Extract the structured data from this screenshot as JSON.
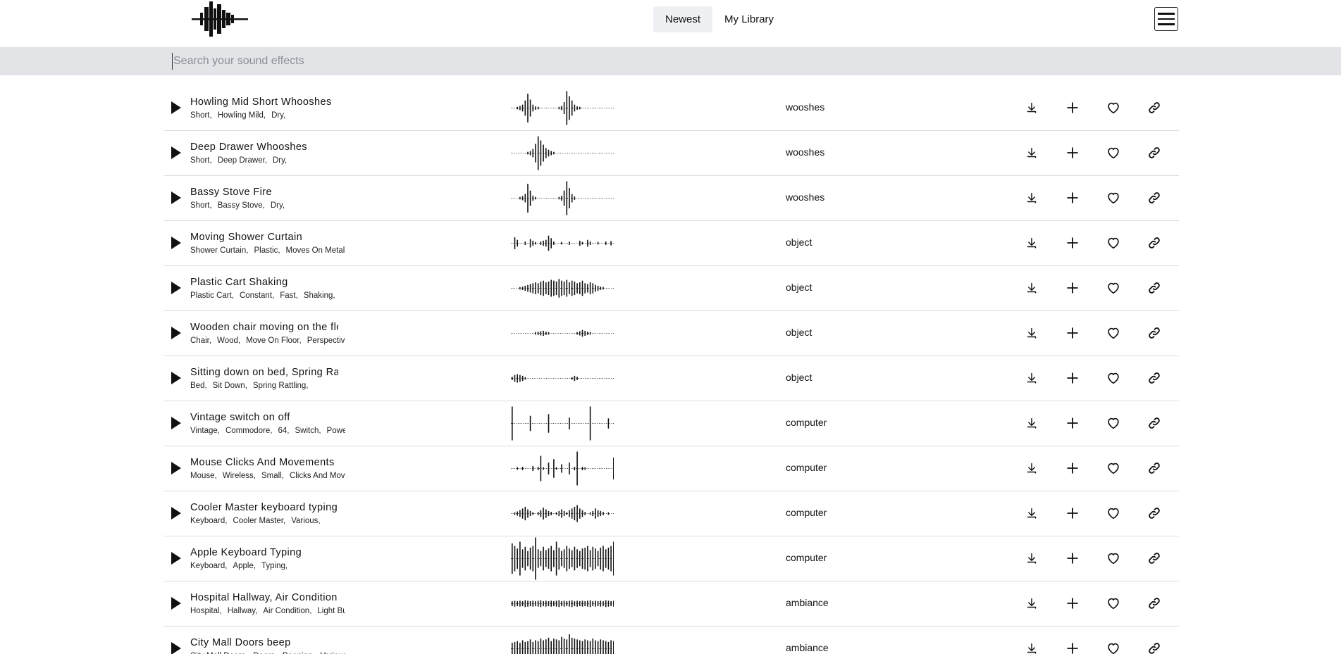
{
  "header": {
    "tabs": [
      {
        "label": "Newest",
        "active": true
      },
      {
        "label": "My Library",
        "active": false
      }
    ],
    "logo_icon": "soundwave-logo",
    "menu_icon": "hamburger-menu-icon"
  },
  "search": {
    "placeholder": "Search your sound effects",
    "value": ""
  },
  "colors": {
    "search_bar_bg": "#e2e4e8",
    "active_tab_bg": "#eef0f4",
    "row_divider": "#dcdcdc"
  },
  "sounds": [
    {
      "title": "Howling Mid Short Whooshes",
      "tags": [
        "Short,",
        "Howling Mild,",
        "Dry,"
      ],
      "category": "wooshes",
      "wave": [
        2,
        2,
        3,
        5,
        8,
        18,
        34,
        20,
        8,
        4,
        3,
        2,
        2,
        2,
        2,
        2,
        2,
        2,
        3,
        5,
        14,
        40,
        28,
        18,
        8,
        4,
        3,
        2,
        2,
        2,
        2,
        2,
        2,
        2,
        2,
        2,
        2,
        2,
        2,
        2
      ]
    },
    {
      "title": "Deep Drawer Whooshes",
      "tags": [
        "Short,",
        "Deep Drawer,",
        "Dry,"
      ],
      "category": "wooshes",
      "wave": [
        2,
        2,
        2,
        2,
        2,
        2,
        3,
        5,
        10,
        22,
        40,
        30,
        20,
        12,
        8,
        5,
        3,
        2,
        2,
        2,
        2,
        2,
        2,
        2,
        2,
        2,
        2,
        2,
        2,
        2,
        2,
        2,
        2,
        2,
        2,
        2,
        2,
        2,
        2,
        2
      ]
    },
    {
      "title": "Bassy Stove Fire",
      "tags": [
        "Short,",
        "Bassy Stove,",
        "Dry,"
      ],
      "category": "wooshes",
      "wave": [
        2,
        2,
        2,
        3,
        5,
        10,
        34,
        18,
        6,
        3,
        2,
        2,
        2,
        2,
        2,
        2,
        2,
        2,
        3,
        6,
        18,
        40,
        24,
        10,
        4,
        2,
        2,
        2,
        2,
        2,
        2,
        2,
        2,
        2,
        2,
        2,
        2,
        2,
        2,
        2
      ]
    },
    {
      "title": "Moving Shower Curtain",
      "tags": [
        "Shower Curtain,",
        "Plastic,",
        "Moves On Metal Rod,"
      ],
      "category": "object",
      "wave": [
        2,
        14,
        8,
        2,
        2,
        4,
        2,
        10,
        6,
        3,
        2,
        4,
        6,
        8,
        18,
        12,
        4,
        2,
        2,
        3,
        2,
        2,
        4,
        2,
        2,
        2,
        6,
        3,
        2,
        8,
        4,
        2,
        2,
        3,
        2,
        2,
        4,
        2,
        5,
        2
      ]
    },
    {
      "title": "Plastic Cart Shaking",
      "tags": [
        "Plastic Cart,",
        "Constant,",
        "Fast,",
        "Shaking,"
      ],
      "category": "object",
      "wave": [
        2,
        2,
        2,
        3,
        4,
        6,
        8,
        10,
        12,
        14,
        12,
        16,
        18,
        14,
        16,
        20,
        18,
        16,
        22,
        18,
        16,
        20,
        14,
        18,
        16,
        12,
        14,
        18,
        12,
        10,
        14,
        12,
        8,
        6,
        4,
        3,
        2,
        2,
        2,
        2
      ]
    },
    {
      "title": "Wooden chair moving on the floor",
      "tags": [
        "Chair,",
        "Wood,",
        "Move On Floor,",
        "Perspective,"
      ],
      "category": "object",
      "wave": [
        2,
        2,
        2,
        2,
        2,
        2,
        2,
        2,
        2,
        3,
        4,
        5,
        6,
        4,
        3,
        2,
        2,
        2,
        2,
        2,
        2,
        2,
        2,
        2,
        2,
        3,
        5,
        8,
        6,
        4,
        3,
        2,
        2,
        2,
        2,
        2,
        2,
        2,
        2,
        2
      ]
    },
    {
      "title": "Sitting down on bed, Spring Rattling",
      "tags": [
        "Bed,",
        "Sit Down,",
        "Spring Rattling,"
      ],
      "category": "object",
      "wave": [
        4,
        8,
        10,
        8,
        6,
        3,
        2,
        2,
        2,
        2,
        2,
        2,
        2,
        2,
        2,
        2,
        2,
        2,
        2,
        2,
        2,
        2,
        2,
        3,
        6,
        4,
        2,
        2,
        2,
        2,
        2,
        2,
        2,
        2,
        2,
        2,
        2,
        2,
        2,
        2
      ]
    },
    {
      "title": "Vintage switch on off",
      "tags": [
        "Vintage,",
        "Commodore,",
        "64,",
        "Switch,",
        "Power,"
      ],
      "category": "computer",
      "wave": [
        40,
        2,
        2,
        2,
        2,
        2,
        2,
        18,
        2,
        2,
        2,
        2,
        2,
        2,
        22,
        2,
        2,
        2,
        2,
        2,
        2,
        2,
        14,
        2,
        2,
        2,
        2,
        2,
        2,
        2,
        40,
        2,
        2,
        2,
        2,
        2,
        2,
        12,
        2,
        2
      ]
    },
    {
      "title": "Mouse Clicks And Movements",
      "tags": [
        "Mouse,",
        "Wireless,",
        "Small,",
        "Clicks And Movements,"
      ],
      "category": "computer",
      "wave": [
        2,
        2,
        3,
        2,
        4,
        2,
        2,
        2,
        6,
        2,
        4,
        30,
        3,
        2,
        14,
        2,
        22,
        3,
        2,
        10,
        2,
        2,
        14,
        2,
        4,
        40,
        2,
        4,
        3,
        2,
        2,
        2,
        2,
        2,
        2,
        2,
        2,
        2,
        2,
        26
      ]
    },
    {
      "title": "Cooler Master keyboard typing",
      "tags": [
        "Keyboard,",
        "Cooler Master,",
        "Various,"
      ],
      "category": "computer",
      "wave": [
        2,
        3,
        5,
        8,
        12,
        16,
        10,
        6,
        3,
        2,
        4,
        8,
        14,
        10,
        6,
        4,
        2,
        3,
        6,
        10,
        6,
        3,
        8,
        12,
        16,
        20,
        12,
        8,
        4,
        2,
        3,
        6,
        12,
        8,
        6,
        4,
        2,
        3,
        2,
        2
      ]
    },
    {
      "title": "Apple Keyboard Typing",
      "tags": [
        "Keyboard,",
        "Apple,",
        "Typing,"
      ],
      "category": "computer",
      "wave": [
        36,
        30,
        24,
        40,
        22,
        28,
        18,
        26,
        30,
        50,
        22,
        18,
        28,
        20,
        24,
        30,
        20,
        40,
        26,
        18,
        22,
        30,
        24,
        20,
        28,
        22,
        18,
        24,
        26,
        30,
        20,
        28,
        24,
        18,
        26,
        30,
        22,
        26,
        30,
        40
      ]
    },
    {
      "title": "Hospital Hallway, Air Condition, Light Buzz",
      "tags": [
        "Hospital,",
        "Hallway,",
        "Air Condition,",
        "Light Buzz,"
      ],
      "category": "ambiance",
      "wave": [
        6,
        7,
        6,
        7,
        6,
        8,
        7,
        6,
        7,
        6,
        7,
        8,
        6,
        7,
        6,
        7,
        6,
        7,
        8,
        6,
        7,
        6,
        7,
        8,
        6,
        7,
        6,
        7,
        6,
        7,
        8,
        6,
        7,
        6,
        7,
        6,
        8,
        7,
        6,
        7
      ]
    },
    {
      "title": "City Mall Doors beep",
      "tags": [
        "City Mall Doors,",
        "Doors,",
        "Beeping,",
        "Various,"
      ],
      "category": "ambiance",
      "wave": [
        14,
        16,
        18,
        14,
        20,
        16,
        18,
        22,
        16,
        20,
        18,
        24,
        20,
        22,
        26,
        18,
        24,
        22,
        20,
        28,
        24,
        22,
        34,
        26,
        24,
        22,
        20,
        18,
        22,
        20,
        18,
        24,
        20,
        18,
        22,
        20,
        18,
        16,
        20,
        18
      ]
    }
  ]
}
